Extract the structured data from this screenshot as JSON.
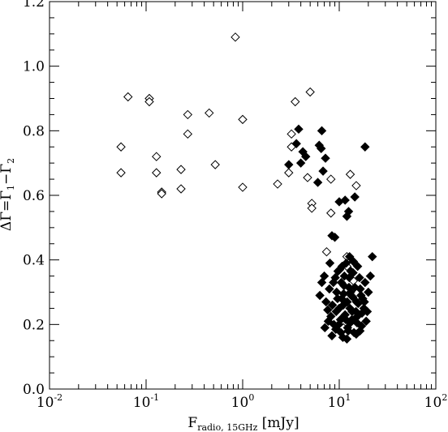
{
  "chart_data": {
    "type": "scatter",
    "title": "",
    "x_scale": "log",
    "xlim": [
      0.01,
      100
    ],
    "ylim": [
      0.0,
      1.2
    ],
    "x_ticks": [
      0.01,
      0.1,
      1,
      10,
      100
    ],
    "x_tick_labels": [
      {
        "base": "10",
        "exp": "-2"
      },
      {
        "base": "10",
        "exp": "-1"
      },
      {
        "base": "10",
        "exp": "0"
      },
      {
        "base": "10",
        "exp": "1"
      },
      {
        "base": "10",
        "exp": "2"
      }
    ],
    "y_ticks": [
      0.0,
      0.2,
      0.4,
      0.6,
      0.8,
      1.0,
      1.2
    ],
    "y_tick_labels": [
      "0.0",
      "0.2",
      "0.4",
      "0.6",
      "0.8",
      "1.0",
      "1.2"
    ],
    "xlabel": {
      "main": "F",
      "sub": "radio, 15GHz",
      "unit": " [mJy]"
    },
    "ylabel": {
      "delta": "ΔΓ=Γ",
      "sub1": "1",
      "dash": "−Γ",
      "sub2": "2"
    },
    "grid": false,
    "series": [
      {
        "marker": "open-diamond",
        "points": [
          [
            0.055,
            0.75
          ],
          [
            0.055,
            0.67
          ],
          [
            0.065,
            0.905
          ],
          [
            0.108,
            0.9
          ],
          [
            0.108,
            0.89
          ],
          [
            0.128,
            0.72
          ],
          [
            0.128,
            0.67
          ],
          [
            0.145,
            0.61
          ],
          [
            0.145,
            0.605
          ],
          [
            0.23,
            0.68
          ],
          [
            0.23,
            0.62
          ],
          [
            0.27,
            0.85
          ],
          [
            0.27,
            0.79
          ],
          [
            0.45,
            0.855
          ],
          [
            0.52,
            0.695
          ],
          [
            0.84,
            1.09
          ],
          [
            1.0,
            0.835
          ],
          [
            1.0,
            0.625
          ],
          [
            2.3,
            0.635
          ],
          [
            3.0,
            0.67
          ],
          [
            3.2,
            0.79
          ],
          [
            3.2,
            0.75
          ],
          [
            3.5,
            0.89
          ],
          [
            4.7,
            0.655
          ],
          [
            5.0,
            0.92
          ],
          [
            5.2,
            0.575
          ],
          [
            5.2,
            0.56
          ],
          [
            7.4,
            0.425
          ],
          [
            8.2,
            0.65
          ],
          [
            8.2,
            0.545
          ],
          [
            12.0,
            0.41
          ],
          [
            13.0,
            0.665
          ],
          [
            15.0,
            0.63
          ],
          [
            12.0,
            0.38
          ],
          [
            14.0,
            0.335
          ],
          [
            11.0,
            0.19
          ]
        ]
      },
      {
        "marker": "filled-diamond",
        "points": [
          [
            3.0,
            0.695
          ],
          [
            3.6,
            0.76
          ],
          [
            3.8,
            0.805
          ],
          [
            4.0,
            0.7
          ],
          [
            4.2,
            0.735
          ],
          [
            4.5,
            0.72
          ],
          [
            6.0,
            0.64
          ],
          [
            6.2,
            0.755
          ],
          [
            6.5,
            0.745
          ],
          [
            6.6,
            0.8
          ],
          [
            6.8,
            0.675
          ],
          [
            7.2,
            0.715
          ],
          [
            8.4,
            0.475
          ],
          [
            9.0,
            0.47
          ],
          [
            10.0,
            0.58
          ],
          [
            11.5,
            0.585
          ],
          [
            12.0,
            0.535
          ],
          [
            12.5,
            0.55
          ],
          [
            14.5,
            0.595
          ],
          [
            18.5,
            0.75
          ],
          [
            22.0,
            0.41
          ],
          [
            6.3,
            0.29
          ],
          [
            6.6,
            0.33
          ],
          [
            7.0,
            0.35
          ],
          [
            7.3,
            0.27
          ],
          [
            7.6,
            0.245
          ],
          [
            7.9,
            0.31
          ],
          [
            8.2,
            0.225
          ],
          [
            8.5,
            0.26
          ],
          [
            8.8,
            0.2
          ],
          [
            9.1,
            0.345
          ],
          [
            9.4,
            0.3
          ],
          [
            9.7,
            0.365
          ],
          [
            10.0,
            0.25
          ],
          [
            10.3,
            0.215
          ],
          [
            10.6,
            0.28
          ],
          [
            10.9,
            0.16
          ],
          [
            11.2,
            0.32
          ],
          [
            11.5,
            0.23
          ],
          [
            11.8,
            0.39
          ],
          [
            12.1,
            0.27
          ],
          [
            12.4,
            0.18
          ],
          [
            12.7,
            0.345
          ],
          [
            13.0,
            0.205
          ],
          [
            13.3,
            0.29
          ],
          [
            13.6,
            0.24
          ],
          [
            13.9,
            0.36
          ],
          [
            14.2,
            0.175
          ],
          [
            14.5,
            0.315
          ],
          [
            14.8,
            0.22
          ],
          [
            15.1,
            0.27
          ],
          [
            15.5,
            0.38
          ],
          [
            16.0,
            0.23
          ],
          [
            16.5,
            0.31
          ],
          [
            17.0,
            0.195
          ],
          [
            17.5,
            0.28
          ],
          [
            18.0,
            0.25
          ],
          [
            18.5,
            0.33
          ],
          [
            19.0,
            0.21
          ],
          [
            20.0,
            0.3
          ],
          [
            21.0,
            0.35
          ],
          [
            7.1,
            0.19
          ],
          [
            8.0,
            0.39
          ],
          [
            9.2,
            0.185
          ],
          [
            10.1,
            0.37
          ],
          [
            11.0,
            0.26
          ],
          [
            12.0,
            0.155
          ],
          [
            13.1,
            0.3
          ],
          [
            14.0,
            0.395
          ],
          [
            15.0,
            0.17
          ],
          [
            16.2,
            0.345
          ],
          [
            17.2,
            0.235
          ],
          [
            10.5,
            0.33
          ],
          [
            11.7,
            0.215
          ],
          [
            12.9,
            0.25
          ],
          [
            9.6,
            0.28
          ],
          [
            8.7,
            0.33
          ],
          [
            10.8,
            0.22
          ],
          [
            13.8,
            0.285
          ],
          [
            15.7,
            0.265
          ],
          [
            11.3,
            0.35
          ],
          [
            12.6,
            0.315
          ],
          [
            9.9,
            0.2
          ],
          [
            14.9,
            0.24
          ],
          [
            16.8,
            0.29
          ],
          [
            7.7,
            0.21
          ],
          [
            10.4,
            0.175
          ],
          [
            12.2,
            0.19
          ],
          [
            13.5,
            0.215
          ],
          [
            18.2,
            0.27
          ],
          [
            19.5,
            0.24
          ],
          [
            11.1,
            0.295
          ],
          [
            13.2,
            0.365
          ],
          [
            9.3,
            0.24
          ],
          [
            8.4,
            0.165
          ],
          [
            15.3,
            0.205
          ],
          [
            16.4,
            0.18
          ],
          [
            10.7,
            0.38
          ],
          [
            12.8,
            0.41
          ]
        ]
      }
    ]
  }
}
